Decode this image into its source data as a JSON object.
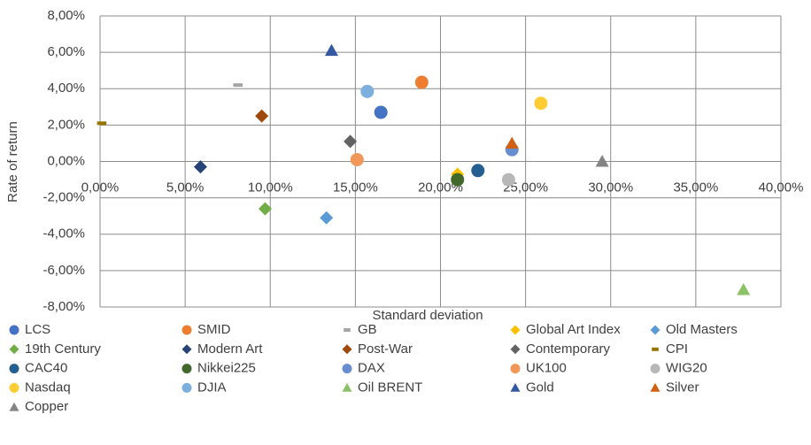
{
  "chart_data": {
    "type": "scatter",
    "x_label": "Standard deviation",
    "y_label": "Rate of return",
    "xlim": [
      0,
      40
    ],
    "ylim": [
      -8,
      8
    ],
    "xticks": [
      {
        "value": 0,
        "label": "0,00%"
      },
      {
        "value": 5,
        "label": "5,00%"
      },
      {
        "value": 10,
        "label": "10,00%"
      },
      {
        "value": 15,
        "label": "15,00%"
      },
      {
        "value": 20,
        "label": "20,00%"
      },
      {
        "value": 25,
        "label": "25,00%"
      },
      {
        "value": 30,
        "label": "30,00%"
      },
      {
        "value": 35,
        "label": "35,00%"
      },
      {
        "value": 40,
        "label": "40,00%"
      }
    ],
    "yticks": [
      {
        "value": 8,
        "label": "8,00%"
      },
      {
        "value": 6,
        "label": "6,00%"
      },
      {
        "value": 4,
        "label": "4,00%"
      },
      {
        "value": 2,
        "label": "2,00%"
      },
      {
        "value": 0,
        "label": "0,00%"
      },
      {
        "value": -2,
        "label": "-2,00%"
      },
      {
        "value": -4,
        "label": "-4,00%"
      },
      {
        "value": -6,
        "label": "-6,00%"
      },
      {
        "value": -8,
        "label": "-8,00%"
      }
    ],
    "grid": true,
    "legend": "bottom",
    "series": [
      {
        "name": "LCS",
        "color": "#4472c4",
        "marker": "circle",
        "x": [
          16.5
        ],
        "values": [
          2.7
        ]
      },
      {
        "name": "SMID",
        "color": "#ed7d31",
        "marker": "circle",
        "x": [
          18.9
        ],
        "values": [
          4.35
        ]
      },
      {
        "name": "GB",
        "color": "#a5a5a5",
        "marker": "dash",
        "x": [
          8.1
        ],
        "values": [
          4.2
        ]
      },
      {
        "name": "Global Art Index",
        "color": "#ffc000",
        "marker": "diamond",
        "x": [
          21.0
        ],
        "values": [
          -0.7
        ]
      },
      {
        "name": "Old Masters",
        "color": "#5b9bd5",
        "marker": "diamond",
        "x": [
          13.3
        ],
        "values": [
          -3.1
        ]
      },
      {
        "name": "19th Century",
        "color": "#70ad47",
        "marker": "diamond",
        "x": [
          9.7
        ],
        "values": [
          -2.6
        ]
      },
      {
        "name": "Modern Art",
        "color": "#264478",
        "marker": "diamond",
        "x": [
          5.9
        ],
        "values": [
          -0.3
        ]
      },
      {
        "name": "Post-War",
        "color": "#9e480e",
        "marker": "diamond",
        "x": [
          9.5
        ],
        "values": [
          2.5
        ]
      },
      {
        "name": "Contemporary",
        "color": "#636363",
        "marker": "diamond",
        "x": [
          14.7
        ],
        "values": [
          1.1
        ]
      },
      {
        "name": "CPI",
        "color": "#997300",
        "marker": "dash",
        "x": [
          0.1
        ],
        "values": [
          2.1
        ]
      },
      {
        "name": "CAC40",
        "color": "#255e91",
        "marker": "circle",
        "x": [
          22.2
        ],
        "values": [
          -0.5
        ]
      },
      {
        "name": "Nikkei225",
        "color": "#43682b",
        "marker": "circle",
        "x": [
          21.0
        ],
        "values": [
          -1.0
        ]
      },
      {
        "name": "DAX",
        "color": "#698ed0",
        "marker": "circle",
        "x": [
          24.2
        ],
        "values": [
          0.65
        ]
      },
      {
        "name": "UK100",
        "color": "#f1975a",
        "marker": "circle",
        "x": [
          15.1
        ],
        "values": [
          0.1
        ]
      },
      {
        "name": "WIG20",
        "color": "#b7b7b7",
        "marker": "circle",
        "x": [
          24.0
        ],
        "values": [
          -1.0
        ]
      },
      {
        "name": "Nasdaq",
        "color": "#ffcd33",
        "marker": "circle",
        "x": [
          25.9
        ],
        "values": [
          3.2
        ]
      },
      {
        "name": "DJIA",
        "color": "#7cafdd",
        "marker": "circle",
        "x": [
          15.7
        ],
        "values": [
          3.85
        ]
      },
      {
        "name": "Oil BRENT",
        "color": "#8cc168",
        "marker": "triangle",
        "x": [
          37.8
        ],
        "values": [
          -7.05
        ]
      },
      {
        "name": "Gold",
        "color": "#335aa1",
        "marker": "triangle",
        "x": [
          13.6
        ],
        "values": [
          6.1
        ]
      },
      {
        "name": "Silver",
        "color": "#d26012",
        "marker": "triangle",
        "x": [
          24.2
        ],
        "values": [
          1.0
        ]
      },
      {
        "name": "Copper",
        "color": "#848484",
        "marker": "triangle",
        "x": [
          29.5
        ],
        "values": [
          0.0
        ]
      }
    ]
  }
}
